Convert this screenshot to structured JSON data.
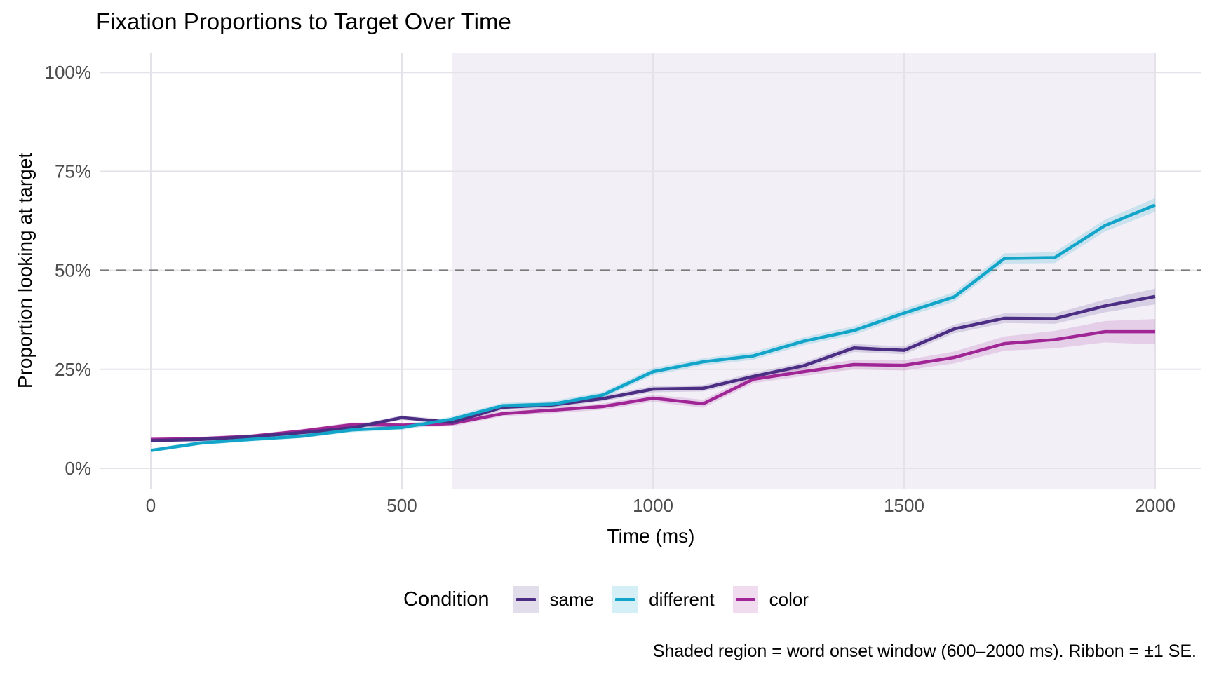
{
  "title": "Fixation Proportions to Target Over Time",
  "caption": "Shaded region = word onset window (600–2000 ms). Ribbon = ±1 SE.",
  "x_axis": {
    "label": "Time (ms)",
    "ticks": [
      {
        "label": "0",
        "value": 0
      },
      {
        "label": "500",
        "value": 500
      },
      {
        "label": "1000",
        "value": 1000
      },
      {
        "label": "1500",
        "value": 1500
      },
      {
        "label": "2000",
        "value": 2000
      }
    ]
  },
  "y_axis": {
    "label": "Proportion looking at target",
    "ticks": [
      {
        "label": "0%",
        "value": 0
      },
      {
        "label": "25%",
        "value": 25
      },
      {
        "label": "50%",
        "value": 50
      },
      {
        "label": "75%",
        "value": 75
      },
      {
        "label": "100%",
        "value": 100
      }
    ]
  },
  "legend": {
    "title": "Condition",
    "items": [
      {
        "label": "same"
      },
      {
        "label": "different"
      },
      {
        "label": "color"
      }
    ]
  },
  "colors": {
    "same_line": "#4b2d83",
    "same_ribbon": "rgba(75,45,131,0.16)",
    "different_line": "#12a5c9",
    "different_ribbon": "rgba(18,165,201,0.18)",
    "color_line": "#a02595",
    "color_ribbon": "rgba(160,37,149,0.16)",
    "shaded_region": "#f2eff7",
    "gridline": "#e5e3e9",
    "reference_line": "#7a7a7a",
    "tick_text": "#4d4d4d"
  },
  "chart_data": {
    "type": "line",
    "title": "Fixation Proportions to Target Over Time",
    "xlabel": "Time (ms)",
    "ylabel": "Proportion looking at target",
    "xlim": [
      0,
      2000
    ],
    "ylim": [
      0,
      100
    ],
    "grid": true,
    "legend_position": "bottom",
    "reference_line_pct": 50,
    "shaded_region_ms": [
      600,
      2000
    ],
    "x": [
      0,
      100,
      200,
      300,
      400,
      500,
      600,
      700,
      800,
      900,
      1000,
      1100,
      1200,
      1300,
      1400,
      1500,
      1600,
      1700,
      1800,
      1900,
      2000
    ],
    "series": [
      {
        "name": "same",
        "color": "#4b2d83",
        "values": [
          7.0,
          7.3,
          8.0,
          9.0,
          10.2,
          12.8,
          11.6,
          15.4,
          16.0,
          17.6,
          20.0,
          20.2,
          23.2,
          25.9,
          30.4,
          29.8,
          35.2,
          37.9,
          37.8,
          41.0,
          43.4
        ],
        "se": [
          0.5,
          0.5,
          0.5,
          0.5,
          0.6,
          0.6,
          0.6,
          0.7,
          0.7,
          0.7,
          0.8,
          0.8,
          0.9,
          0.9,
          1.0,
          1.0,
          1.1,
          1.2,
          1.3,
          1.6,
          2.0
        ]
      },
      {
        "name": "different",
        "color": "#12a5c9",
        "values": [
          4.5,
          6.4,
          7.3,
          8.1,
          9.7,
          10.3,
          12.4,
          15.8,
          16.2,
          18.5,
          24.4,
          26.9,
          28.4,
          32.1,
          34.8,
          39.2,
          43.3,
          53.0,
          53.2,
          61.3,
          66.5
        ],
        "se": [
          0.5,
          0.5,
          0.5,
          0.5,
          0.6,
          0.6,
          0.7,
          0.7,
          0.8,
          0.8,
          0.9,
          0.9,
          1.0,
          1.0,
          1.1,
          1.1,
          1.2,
          1.3,
          1.4,
          1.5,
          1.7
        ]
      },
      {
        "name": "color",
        "color": "#a02595",
        "values": [
          7.3,
          7.5,
          8.1,
          9.4,
          11.0,
          10.9,
          11.3,
          13.8,
          14.7,
          15.6,
          17.7,
          16.3,
          22.5,
          24.4,
          26.2,
          26.0,
          28.0,
          31.5,
          32.5,
          34.5,
          34.5
        ],
        "se": [
          0.5,
          0.5,
          0.5,
          0.5,
          0.6,
          0.6,
          0.7,
          0.7,
          0.8,
          0.8,
          0.9,
          1.0,
          1.0,
          1.1,
          1.2,
          1.3,
          1.5,
          1.8,
          2.2,
          2.7,
          3.2
        ]
      }
    ]
  }
}
